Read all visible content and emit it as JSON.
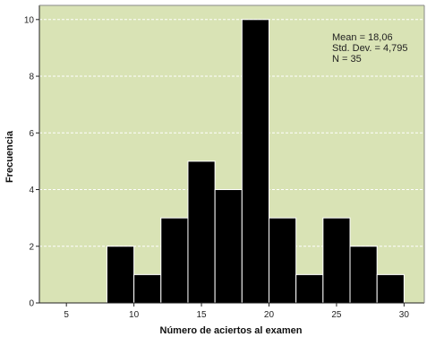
{
  "chart_data": {
    "type": "bar",
    "title": "",
    "xlabel": "Número de aciertos al examen",
    "ylabel": "Frecuencia",
    "xlim": [
      3,
      31.5
    ],
    "ylim": [
      0,
      10.5
    ],
    "xticks": [
      5,
      10,
      15,
      20,
      25,
      30
    ],
    "yticks": [
      0,
      2,
      4,
      6,
      8,
      10
    ],
    "grid": true,
    "bin_width": 2,
    "bins": [
      {
        "start": 8,
        "end": 10,
        "value": 2
      },
      {
        "start": 10,
        "end": 12,
        "value": 1
      },
      {
        "start": 12,
        "end": 14,
        "value": 3
      },
      {
        "start": 14,
        "end": 16,
        "value": 5
      },
      {
        "start": 16,
        "end": 18,
        "value": 4
      },
      {
        "start": 18,
        "end": 20,
        "value": 10
      },
      {
        "start": 20,
        "end": 22,
        "value": 3
      },
      {
        "start": 22,
        "end": 24,
        "value": 1
      },
      {
        "start": 24,
        "end": 26,
        "value": 3
      },
      {
        "start": 26,
        "end": 28,
        "value": 2
      },
      {
        "start": 28,
        "end": 30,
        "value": 1
      }
    ],
    "stats": {
      "mean": "Mean = 18,06",
      "std": "Std. Dev. = 4,795",
      "n": "N = 35"
    },
    "colors": {
      "plot_background": "#d9e3b5",
      "bar_fill": "#000000",
      "bar_stroke": "#ffffff",
      "grid": "#ffffff"
    }
  }
}
